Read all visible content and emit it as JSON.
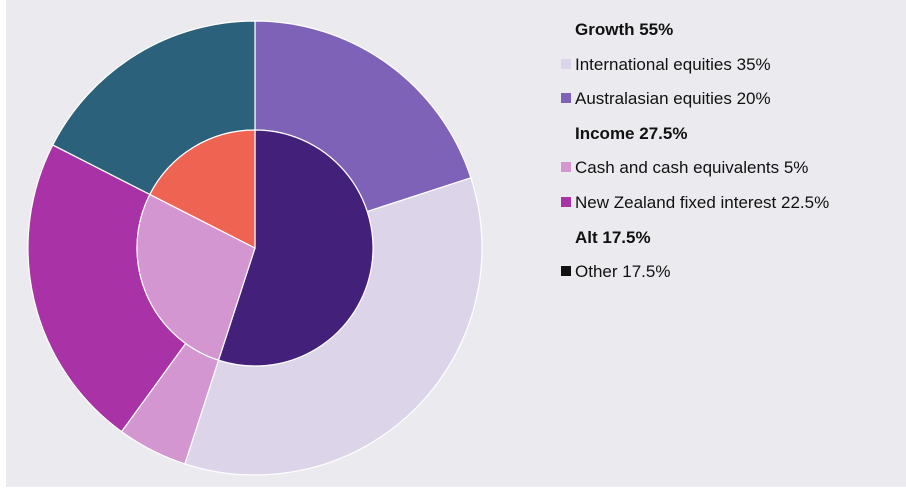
{
  "chart_data": {
    "type": "pie",
    "inner": {
      "labels": [
        "Growth 55%",
        "Income 27.5%",
        "Alt 17.5%"
      ],
      "values": [
        55,
        27.5,
        17.5
      ],
      "colors": [
        "#43207a",
        "#d496d1",
        "#ee6352"
      ]
    },
    "outer": {
      "labels": [
        "Australasian equities 20%",
        "International equities 35%",
        "Cash and cash equivalents 5%",
        "New Zealand fixed interest 22.5%",
        "Other 17.5%"
      ],
      "values": [
        20,
        35,
        5,
        22.5,
        17.5
      ],
      "colors": [
        "#7e62b8",
        "#dcd4e8",
        "#d496d1",
        "#a832a6",
        "#2b617a"
      ],
      "legend_colors": [
        "#7e62b8",
        "#dcd4e8",
        "#d496d1",
        "#a832a6",
        "#111111"
      ]
    }
  }
}
